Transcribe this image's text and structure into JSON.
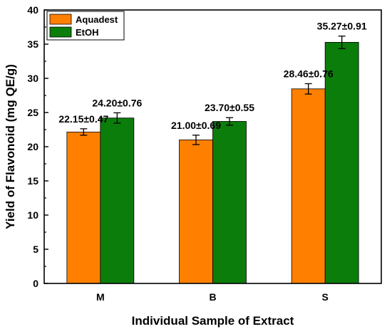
{
  "chart_data": {
    "type": "bar",
    "xlabel": "Individual Sample of Extract",
    "ylabel": "Yield of Flavonoid (mg QE/g)",
    "ylim": [
      0,
      40
    ],
    "yticks": [
      "0",
      "5",
      "10",
      "15",
      "20",
      "25",
      "30",
      "35",
      "40"
    ],
    "categories": [
      "M",
      "B",
      "S"
    ],
    "series": [
      {
        "name": "Aquadest",
        "color": "#ff8000",
        "values": [
          22.15,
          21.0,
          28.46
        ],
        "errors": [
          0.47,
          0.69,
          0.76
        ],
        "labels": [
          "22.15±0.47",
          "21.00±0.69",
          "28.46±0.76"
        ]
      },
      {
        "name": "EtOH",
        "color": "#0b7d0b",
        "values": [
          24.2,
          23.7,
          35.27
        ],
        "errors": [
          0.76,
          0.55,
          0.91
        ],
        "labels": [
          "24.20±0.76",
          "23.70±0.55",
          "35.27±0.91"
        ]
      }
    ],
    "legend_position": "top-left",
    "grid": false
  }
}
